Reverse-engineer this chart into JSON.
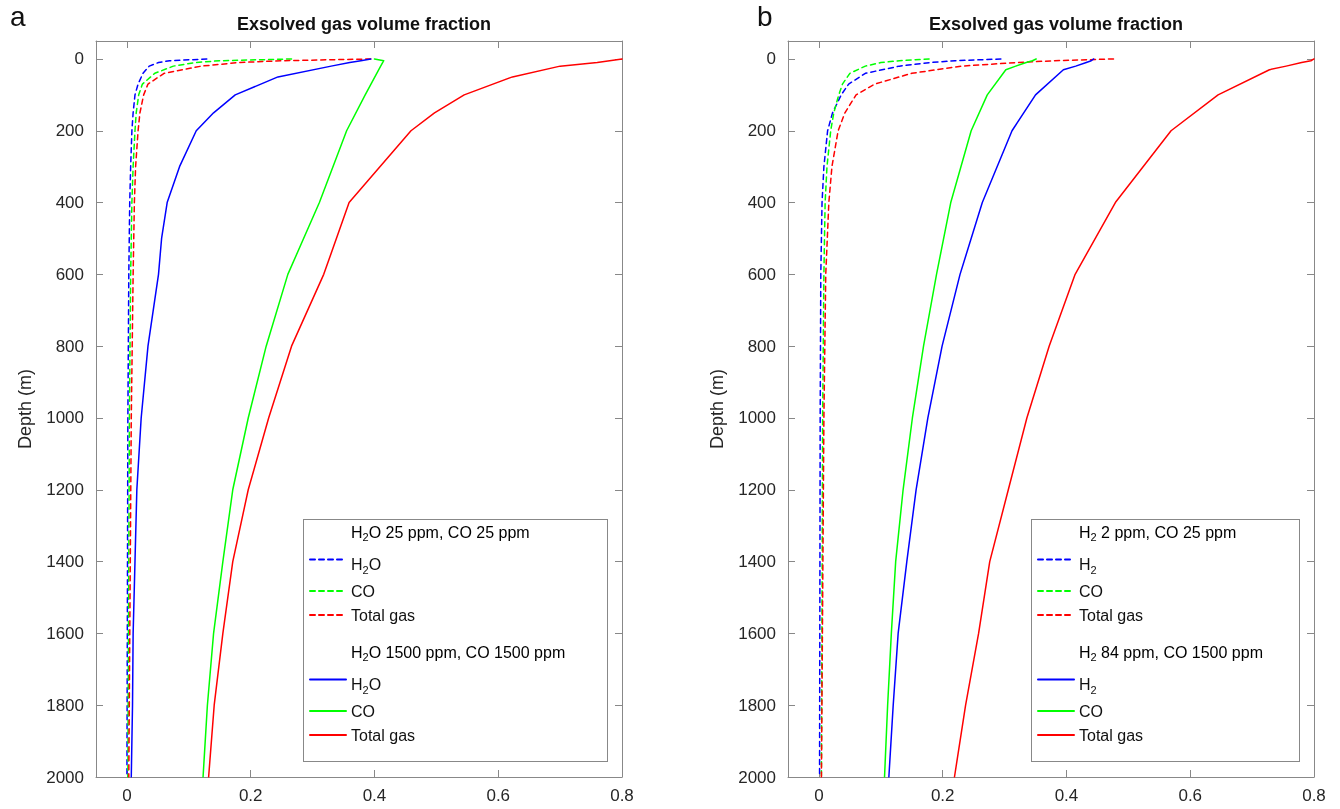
{
  "chart_data": [
    {
      "type": "line",
      "title": "Exsolved gas volume fraction",
      "ylabel": "Depth (m)",
      "annotations": [
        "a",
        "H$_{2}$O 25 ppm, CO 25 ppm",
        "H$_{2}$O 1500 ppm, CO 1500 ppm"
      ],
      "xlim": [
        -0.05,
        0.8
      ],
      "xticks": [
        0,
        0.2,
        0.4,
        0.6,
        0.8
      ],
      "ylim": [
        2000,
        -50
      ],
      "yticks": [
        0,
        200,
        400,
        600,
        800,
        1000,
        1200,
        1400,
        1600,
        1800,
        2000
      ],
      "grid": false,
      "legend": "bottom right",
      "marker": "none",
      "series": [
        {
          "name": "H$_{2}$O",
          "color": "#0000ff",
          "line_style": "dashed",
          "x": [
            0.129,
            0.069,
            0.051,
            0.036,
            0.026,
            0.018,
            0.013,
            0.01,
            0.008,
            0.006,
            0.0045,
            0.003,
            0.0015,
            0
          ],
          "values": [
            0,
            5,
            10,
            20,
            40,
            70,
            100,
            150,
            200,
            300,
            400,
            600,
            1000,
            2000
          ]
        },
        {
          "name": "CO",
          "color": "#00ff00",
          "line_style": "dashed",
          "x": [
            0.266,
            0.15,
            0.11,
            0.075,
            0.045,
            0.025,
            0.019,
            0.015,
            0.013,
            0.01,
            0.008,
            0.006,
            0.004,
            0.0015
          ],
          "values": [
            0,
            5,
            10,
            20,
            40,
            70,
            100,
            150,
            200,
            300,
            400,
            600,
            1000,
            2000
          ]
        },
        {
          "name": "Total gas",
          "color": "#ff0000",
          "line_style": "dashed",
          "x": [
            0.394,
            0.25,
            0.18,
            0.12,
            0.06,
            0.034,
            0.027,
            0.021,
            0.018,
            0.014,
            0.012,
            0.01,
            0.007,
            0.003
          ],
          "values": [
            0,
            5,
            10,
            20,
            40,
            70,
            100,
            150,
            200,
            300,
            400,
            600,
            1000,
            2000
          ]
        },
        {
          "name": "H$_{2}$O",
          "color": "#0000ff",
          "line_style": "solid",
          "x": [
            0.394,
            0.378,
            0.36,
            0.33,
            0.244,
            0.175,
            0.14,
            0.112,
            0.085,
            0.065,
            0.056,
            0.051,
            0.034,
            0.023,
            0.016,
            0.013,
            0.01,
            0.009,
            0.007
          ],
          "values": [
            0,
            5,
            10,
            20,
            50,
            100,
            150,
            200,
            300,
            400,
            500,
            600,
            800,
            1000,
            1200,
            1400,
            1600,
            1800,
            2000
          ]
        },
        {
          "name": "CO",
          "color": "#00ff00",
          "line_style": "solid",
          "x": [
            0.4,
            0.415,
            0.41,
            0.385,
            0.355,
            0.311,
            0.26,
            0.225,
            0.196,
            0.171,
            0.155,
            0.14,
            0.13,
            0.123
          ],
          "values": [
            0,
            5,
            20,
            100,
            200,
            400,
            600,
            800,
            1000,
            1200,
            1400,
            1600,
            1800,
            2000
          ]
        },
        {
          "name": "Total gas",
          "color": "#ff0000",
          "line_style": "solid",
          "x": [
            0.8,
            0.78,
            0.76,
            0.7,
            0.623,
            0.545,
            0.497,
            0.459,
            0.359,
            0.318,
            0.266,
            0.229,
            0.196,
            0.171,
            0.155,
            0.141,
            0.132
          ],
          "values": [
            0,
            5,
            10,
            20,
            50,
            100,
            150,
            200,
            400,
            600,
            800,
            1000,
            1200,
            1400,
            1600,
            1800,
            2000
          ]
        }
      ]
    },
    {
      "type": "line",
      "title": "Exsolved gas volume fraction",
      "ylabel": "Depth (m)",
      "annotations": [
        "b",
        "H$_{2}$ 2 ppm, CO 25 ppm",
        "H$_{2}$ 84 ppm, CO 1500 ppm"
      ],
      "xlim": [
        -0.05,
        0.8
      ],
      "xticks": [
        0,
        0.2,
        0.4,
        0.6,
        0.8
      ],
      "ylim": [
        2000,
        -50
      ],
      "yticks": [
        0,
        200,
        400,
        600,
        800,
        1000,
        1200,
        1400,
        1600,
        1800,
        2000
      ],
      "grid": false,
      "legend": "bottom right",
      "marker": "none",
      "series": [
        {
          "name": "H$_{2}$",
          "color": "#0000ff",
          "line_style": "dashed",
          "x": [
            0.294,
            0.22,
            0.18,
            0.13,
            0.075,
            0.048,
            0.036,
            0.022,
            0.014,
            0.008,
            0.005,
            0.003,
            0.002,
            0.001
          ],
          "values": [
            0,
            5,
            10,
            20,
            40,
            70,
            100,
            150,
            200,
            300,
            400,
            600,
            1000,
            2000
          ]
        },
        {
          "name": "CO",
          "color": "#00ff00",
          "line_style": "dashed",
          "x": [
            0.178,
            0.13,
            0.1,
            0.075,
            0.05,
            0.038,
            0.032,
            0.024,
            0.019,
            0.013,
            0.01,
            0.008,
            0.006,
            0.004
          ],
          "values": [
            0,
            5,
            10,
            20,
            40,
            70,
            100,
            150,
            200,
            300,
            400,
            600,
            1000,
            2000
          ]
        },
        {
          "name": "Total gas",
          "color": "#ff0000",
          "line_style": "dashed",
          "x": [
            0.476,
            0.38,
            0.32,
            0.23,
            0.15,
            0.09,
            0.06,
            0.042,
            0.031,
            0.021,
            0.016,
            0.011,
            0.008,
            0.004
          ],
          "values": [
            0,
            5,
            10,
            20,
            40,
            70,
            100,
            150,
            200,
            300,
            400,
            600,
            1000,
            2000
          ]
        },
        {
          "name": "H$_{2}$",
          "color": "#0000ff",
          "line_style": "solid",
          "x": [
            0.444,
            0.44,
            0.432,
            0.415,
            0.395,
            0.35,
            0.312,
            0.264,
            0.228,
            0.199,
            0.176,
            0.157,
            0.142,
            0.128,
            0.12,
            0.113
          ],
          "values": [
            0,
            5,
            10,
            20,
            30,
            100,
            200,
            400,
            600,
            800,
            1000,
            1200,
            1400,
            1600,
            1800,
            2000
          ]
        },
        {
          "name": "CO",
          "color": "#00ff00",
          "line_style": "solid",
          "x": [
            0.351,
            0.345,
            0.335,
            0.318,
            0.302,
            0.272,
            0.246,
            0.213,
            0.19,
            0.169,
            0.151,
            0.136,
            0.124,
            0.117,
            0.111,
            0.106
          ],
          "values": [
            0,
            5,
            10,
            20,
            30,
            100,
            200,
            400,
            600,
            800,
            1000,
            1200,
            1400,
            1600,
            1800,
            2000
          ]
        },
        {
          "name": "Total gas",
          "color": "#ff0000",
          "line_style": "solid",
          "x": [
            0.8,
            0.795,
            0.78,
            0.755,
            0.728,
            0.645,
            0.569,
            0.479,
            0.414,
            0.372,
            0.336,
            0.306,
            0.276,
            0.258,
            0.237,
            0.219
          ],
          "values": [
            0,
            5,
            10,
            20,
            30,
            100,
            200,
            400,
            600,
            800,
            1000,
            1200,
            1400,
            1600,
            1800,
            2000
          ]
        }
      ]
    }
  ]
}
